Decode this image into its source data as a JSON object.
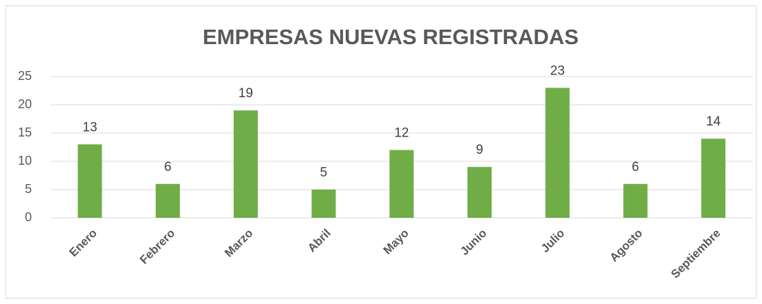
{
  "chart_data": {
    "type": "bar",
    "title": "EMPRESAS NUEVAS REGISTRADAS",
    "categories": [
      "Enero",
      "Febrero",
      "Marzo",
      "Abril",
      "Mayo",
      "Junio",
      "Julio",
      "Agosto",
      "Septiembre"
    ],
    "values": [
      13,
      6,
      19,
      5,
      12,
      9,
      23,
      6,
      14
    ],
    "color": "#70ad47",
    "ylim": [
      0,
      25
    ],
    "yticks": [
      0,
      5,
      10,
      15,
      20,
      25
    ],
    "grid": true
  }
}
